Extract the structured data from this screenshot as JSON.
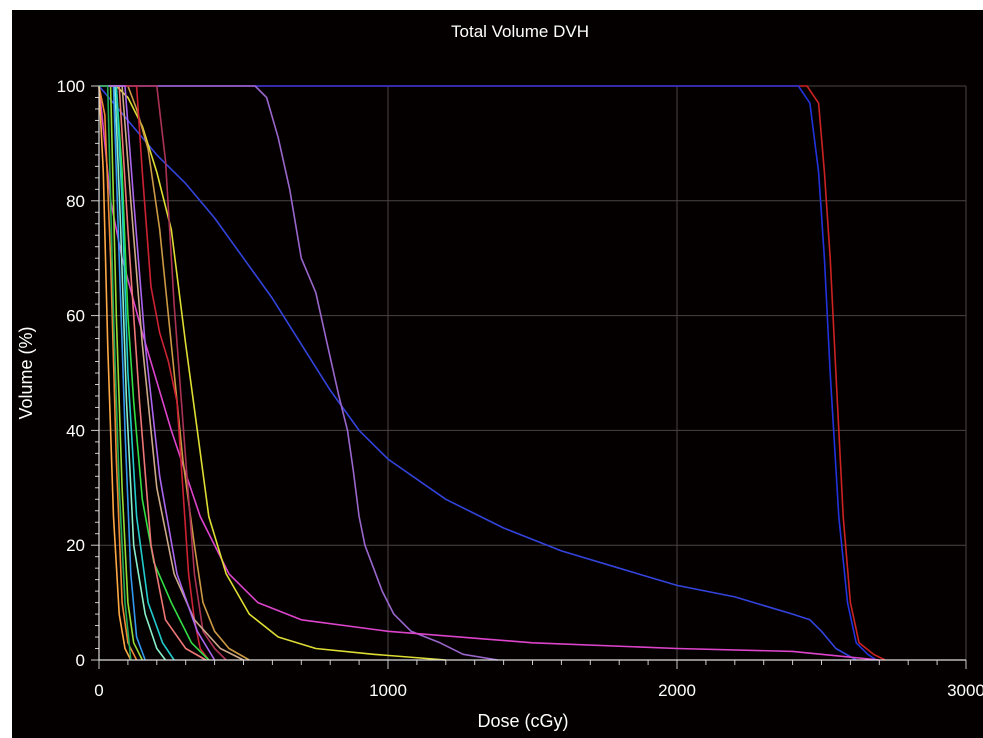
{
  "chart_data": {
    "type": "line",
    "title": "Total Volume DVH",
    "xlabel": "Dose (cGy)",
    "ylabel": "Volume (%)",
    "xlim": [
      0,
      3000
    ],
    "ylim": [
      0,
      100
    ],
    "xticks": [
      0,
      1000,
      2000,
      3000
    ],
    "yticks": [
      0,
      20,
      40,
      60,
      80,
      100
    ],
    "grid": true,
    "legend": "none",
    "background": "#050000",
    "series": [
      {
        "color": "#cc2222",
        "points": [
          [
            0,
            100
          ],
          [
            2450,
            100
          ],
          [
            2490,
            97
          ],
          [
            2510,
            85
          ],
          [
            2530,
            70
          ],
          [
            2550,
            50
          ],
          [
            2575,
            25
          ],
          [
            2600,
            10
          ],
          [
            2630,
            3
          ],
          [
            2680,
            1
          ],
          [
            2720,
            0
          ]
        ]
      },
      {
        "color": "#2233dd",
        "points": [
          [
            0,
            100
          ],
          [
            2420,
            100
          ],
          [
            2460,
            97
          ],
          [
            2490,
            85
          ],
          [
            2510,
            70
          ],
          [
            2530,
            50
          ],
          [
            2560,
            25
          ],
          [
            2590,
            10
          ],
          [
            2620,
            3
          ],
          [
            2660,
            1
          ],
          [
            2690,
            0
          ]
        ]
      },
      {
        "color": "#3344dd",
        "points": [
          [
            0,
            100
          ],
          [
            50,
            97
          ],
          [
            100,
            94
          ],
          [
            200,
            88
          ],
          [
            300,
            83
          ],
          [
            400,
            77
          ],
          [
            500,
            70
          ],
          [
            600,
            63
          ],
          [
            700,
            55
          ],
          [
            800,
            47
          ],
          [
            900,
            40
          ],
          [
            1000,
            35
          ],
          [
            1200,
            28
          ],
          [
            1400,
            23
          ],
          [
            1600,
            19
          ],
          [
            1800,
            16
          ],
          [
            2000,
            13
          ],
          [
            2200,
            11
          ],
          [
            2400,
            8
          ],
          [
            2460,
            7
          ],
          [
            2500,
            5
          ],
          [
            2550,
            2
          ],
          [
            2620,
            0
          ]
        ]
      },
      {
        "color": "#9966cc",
        "points": [
          [
            0,
            100
          ],
          [
            540,
            100
          ],
          [
            580,
            98
          ],
          [
            620,
            91
          ],
          [
            660,
            82
          ],
          [
            700,
            70
          ],
          [
            750,
            64
          ],
          [
            790,
            55
          ],
          [
            830,
            46
          ],
          [
            860,
            40
          ],
          [
            880,
            33
          ],
          [
            900,
            25
          ],
          [
            920,
            20
          ],
          [
            950,
            16
          ],
          [
            980,
            12
          ],
          [
            1020,
            8
          ],
          [
            1080,
            5
          ],
          [
            1180,
            3
          ],
          [
            1260,
            1
          ],
          [
            1380,
            0
          ]
        ]
      },
      {
        "color": "#dd44cc",
        "points": [
          [
            0,
            100
          ],
          [
            40,
            80
          ],
          [
            80,
            70
          ],
          [
            150,
            57
          ],
          [
            250,
            40
          ],
          [
            350,
            25
          ],
          [
            450,
            15
          ],
          [
            550,
            10
          ],
          [
            700,
            7
          ],
          [
            1000,
            5
          ],
          [
            1500,
            3
          ],
          [
            2000,
            2
          ],
          [
            2400,
            1.5
          ],
          [
            2500,
            1
          ],
          [
            2700,
            0
          ]
        ]
      },
      {
        "color": "#dddd33",
        "points": [
          [
            0,
            100
          ],
          [
            60,
            100
          ],
          [
            100,
            98
          ],
          [
            150,
            93
          ],
          [
            200,
            85
          ],
          [
            250,
            75
          ],
          [
            300,
            55
          ],
          [
            340,
            40
          ],
          [
            380,
            25
          ],
          [
            440,
            15
          ],
          [
            520,
            8
          ],
          [
            620,
            4
          ],
          [
            750,
            2
          ],
          [
            950,
            1
          ],
          [
            1200,
            0
          ]
        ]
      },
      {
        "color": "#cc9944",
        "points": [
          [
            0,
            100
          ],
          [
            100,
            100
          ],
          [
            130,
            96
          ],
          [
            170,
            89
          ],
          [
            210,
            75
          ],
          [
            250,
            55
          ],
          [
            290,
            35
          ],
          [
            330,
            20
          ],
          [
            360,
            10
          ],
          [
            400,
            5
          ],
          [
            450,
            2
          ],
          [
            520,
            0
          ]
        ]
      },
      {
        "color": "#cc2233",
        "points": [
          [
            0,
            100
          ],
          [
            130,
            100
          ],
          [
            150,
            85
          ],
          [
            180,
            65
          ],
          [
            210,
            57
          ],
          [
            240,
            52
          ],
          [
            270,
            45
          ],
          [
            290,
            30
          ],
          [
            310,
            15
          ],
          [
            330,
            7
          ],
          [
            350,
            2
          ],
          [
            380,
            0
          ]
        ]
      },
      {
        "color": "#aa3355",
        "points": [
          [
            0,
            100
          ],
          [
            200,
            100
          ],
          [
            230,
            87
          ],
          [
            260,
            62
          ],
          [
            300,
            35
          ],
          [
            330,
            15
          ],
          [
            360,
            5
          ],
          [
            400,
            2
          ],
          [
            440,
            0
          ]
        ]
      },
      {
        "color": "#33dd44",
        "points": [
          [
            0,
            100
          ],
          [
            60,
            100
          ],
          [
            80,
            85
          ],
          [
            100,
            60
          ],
          [
            120,
            45
          ],
          [
            150,
            28
          ],
          [
            190,
            17
          ],
          [
            250,
            10
          ],
          [
            320,
            3
          ],
          [
            380,
            0
          ]
        ]
      },
      {
        "color": "#22cccc",
        "points": [
          [
            0,
            100
          ],
          [
            60,
            100
          ],
          [
            80,
            80
          ],
          [
            100,
            50
          ],
          [
            130,
            25
          ],
          [
            170,
            10
          ],
          [
            220,
            3
          ],
          [
            260,
            0
          ]
        ]
      },
      {
        "color": "#88eecc",
        "points": [
          [
            0,
            100
          ],
          [
            55,
            100
          ],
          [
            75,
            75
          ],
          [
            95,
            45
          ],
          [
            120,
            20
          ],
          [
            160,
            8
          ],
          [
            200,
            2
          ],
          [
            230,
            0
          ]
        ]
      },
      {
        "color": "#ee8833",
        "points": [
          [
            0,
            100
          ],
          [
            20,
            95
          ],
          [
            40,
            70
          ],
          [
            60,
            35
          ],
          [
            80,
            10
          ],
          [
            100,
            3
          ],
          [
            130,
            0
          ]
        ]
      },
      {
        "color": "#ffaa44",
        "points": [
          [
            0,
            100
          ],
          [
            15,
            85
          ],
          [
            30,
            55
          ],
          [
            50,
            25
          ],
          [
            70,
            8
          ],
          [
            90,
            2
          ],
          [
            110,
            0
          ]
        ]
      },
      {
        "color": "#99dd33",
        "points": [
          [
            0,
            100
          ],
          [
            40,
            100
          ],
          [
            60,
            60
          ],
          [
            80,
            30
          ],
          [
            100,
            10
          ],
          [
            120,
            3
          ],
          [
            150,
            0
          ]
        ]
      },
      {
        "color": "#3399ee",
        "points": [
          [
            0,
            100
          ],
          [
            50,
            100
          ],
          [
            70,
            70
          ],
          [
            90,
            40
          ],
          [
            110,
            15
          ],
          [
            130,
            4
          ],
          [
            160,
            0
          ]
        ]
      },
      {
        "color": "#ee7777",
        "points": [
          [
            0,
            100
          ],
          [
            70,
            100
          ],
          [
            100,
            75
          ],
          [
            140,
            45
          ],
          [
            180,
            20
          ],
          [
            230,
            7
          ],
          [
            300,
            2
          ],
          [
            370,
            0
          ]
        ]
      },
      {
        "color": "#ccaa88",
        "points": [
          [
            0,
            100
          ],
          [
            80,
            100
          ],
          [
            110,
            80
          ],
          [
            150,
            55
          ],
          [
            200,
            30
          ],
          [
            260,
            15
          ],
          [
            330,
            7
          ],
          [
            420,
            2
          ],
          [
            500,
            0
          ]
        ]
      },
      {
        "color": "#aa66ee",
        "points": [
          [
            0,
            100
          ],
          [
            90,
            100
          ],
          [
            120,
            80
          ],
          [
            160,
            55
          ],
          [
            210,
            32
          ],
          [
            270,
            15
          ],
          [
            340,
            5
          ],
          [
            400,
            0
          ]
        ]
      },
      {
        "color": "#22aa55",
        "points": [
          [
            0,
            100
          ],
          [
            30,
            100
          ],
          [
            50,
            60
          ],
          [
            70,
            30
          ],
          [
            90,
            10
          ],
          [
            110,
            0
          ]
        ]
      }
    ]
  }
}
